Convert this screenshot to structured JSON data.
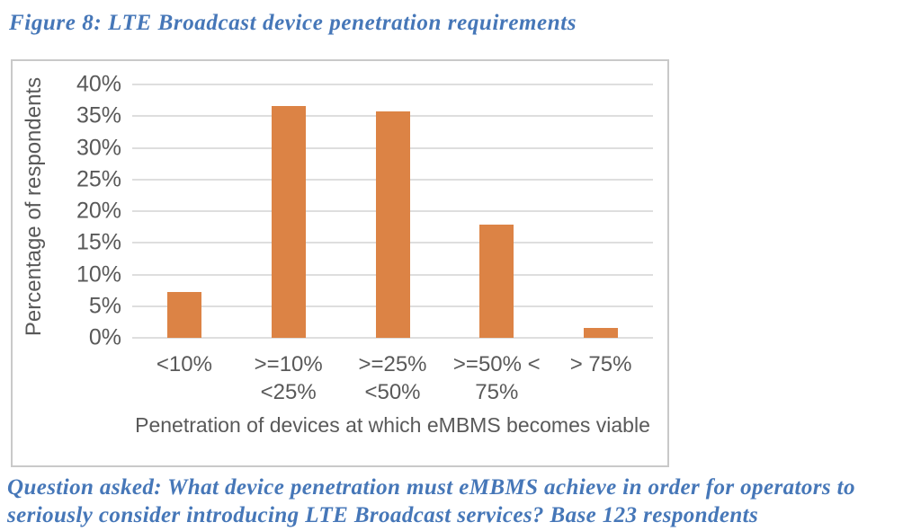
{
  "figure_title": "Figure 8: LTE Broadcast device penetration requirements",
  "caption": {
    "line1": "Question asked: What device penetration must eMBMS achieve in order for operators to",
    "line2": "seriously consider introducing LTE Broadcast services? Base 123 respondents"
  },
  "colors": {
    "bar": "#dc8345",
    "accent_text": "#4677b8",
    "axis_text": "#595959",
    "gridline": "#dedede",
    "chart_border": "#c9c9c9"
  },
  "chart_data": {
    "type": "bar",
    "title": "Figure 8: LTE Broadcast device penetration requirements",
    "categories": [
      "<10%",
      ">=10% <25%",
      ">=25% <50%",
      ">=50% < 75%",
      "> 75%"
    ],
    "category_label_lines": [
      [
        "<10%"
      ],
      [
        ">=10%",
        "<25%"
      ],
      [
        ">=25%",
        "<50%"
      ],
      [
        ">=50% <",
        "75%"
      ],
      [
        "> 75%"
      ]
    ],
    "values": [
      7.3,
      36.6,
      35.8,
      17.9,
      1.6
    ],
    "xlabel": "Penetration of devices at which eMBMS becomes viable",
    "ylabel": "Percentage of respondents",
    "ylim": [
      0,
      40
    ],
    "ytick_step": 5,
    "yticks": [
      "0%",
      "5%",
      "10%",
      "15%",
      "20%",
      "25%",
      "30%",
      "35%",
      "40%"
    ],
    "grid": "horizontal",
    "legend": "none",
    "base_note": "Base 123 respondents"
  }
}
